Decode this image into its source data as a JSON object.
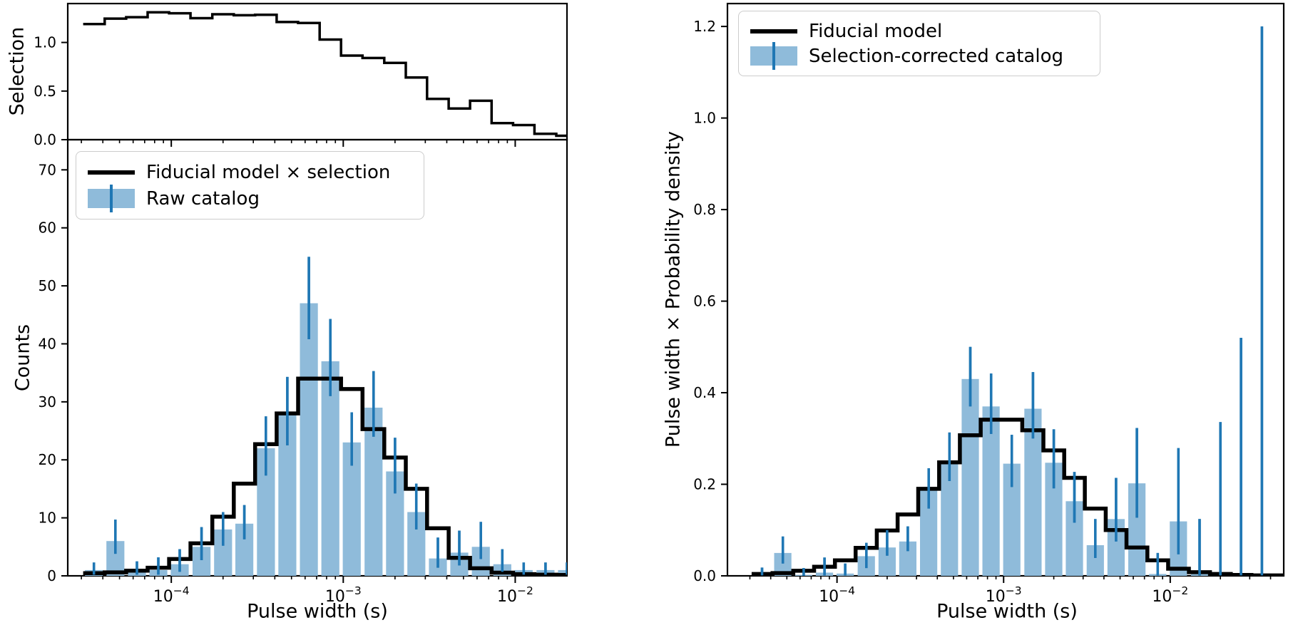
{
  "labels": {
    "selection_ylabel": "Selection",
    "counts_ylabel": "Counts",
    "density_ylabel": "Pulse width × Probability density",
    "xlabel_left": "Pulse width (s)",
    "xlabel_right": "Pulse width (s)"
  },
  "left_legend": {
    "items": [
      {
        "label": "Fiducial model × selection",
        "swatch": "black-line-icon"
      },
      {
        "label": "Raw catalog",
        "swatch": "blue-errorbar-patch-icon"
      }
    ]
  },
  "right_legend": {
    "items": [
      {
        "label": "Fiducial model",
        "swatch": "black-line-icon"
      },
      {
        "label": "Selection-corrected catalog",
        "swatch": "blue-errorbar-patch-icon"
      }
    ]
  },
  "colors": {
    "bar_fill": "#8fbbda",
    "error_bar": "#1f77b4",
    "model_line": "#000000",
    "axis": "#000000",
    "legend_border": "#cccccc"
  },
  "chart_data": [
    {
      "type": "line",
      "panel": "top-left-selection",
      "ylabel": "Selection",
      "xscale": "log",
      "line_style": "step",
      "xlim": [
        2.5e-05,
        0.02
      ],
      "ylim": [
        0,
        1.4
      ],
      "yticks": [
        {
          "v": 0.0,
          "label": "0.0"
        },
        {
          "v": 0.5,
          "label": "0.5"
        },
        {
          "v": 1.0,
          "label": "1.0"
        }
      ],
      "x_centers": [
        3.55e-05,
        4.73e-05,
        6.31e-05,
        8.41e-05,
        0.000112,
        0.00015,
        0.0002,
        0.000266,
        0.000355,
        0.000473,
        0.000631,
        0.000841,
        0.00112,
        0.0015,
        0.002,
        0.00266,
        0.00355,
        0.00473,
        0.00631,
        0.00841,
        0.0112,
        0.015,
        0.02,
        0.0266,
        0.0355
      ],
      "values": [
        1.19,
        1.245,
        1.26,
        1.31,
        1.3,
        1.25,
        1.29,
        1.28,
        1.285,
        1.21,
        1.2,
        1.03,
        0.865,
        0.84,
        0.79,
        0.64,
        0.42,
        0.32,
        0.4,
        0.17,
        0.15,
        0.06,
        0.04,
        0.03,
        0.02
      ]
    },
    {
      "type": "bar",
      "panel": "bottom-left-counts",
      "ylabel": "Counts",
      "xlabel": "Pulse width (s)",
      "xscale": "log",
      "xlim": [
        2.5e-05,
        0.02
      ],
      "ylim": [
        0,
        75.2
      ],
      "yticks": [
        {
          "v": 0,
          "label": "0"
        },
        {
          "v": 10,
          "label": "10"
        },
        {
          "v": 20,
          "label": "20"
        },
        {
          "v": 30,
          "label": "30"
        },
        {
          "v": 40,
          "label": "40"
        },
        {
          "v": 50,
          "label": "50"
        },
        {
          "v": 60,
          "label": "60"
        },
        {
          "v": 70,
          "label": "70"
        }
      ],
      "xticks": [
        {
          "value": 0.0001,
          "base": "10",
          "exp": "−4"
        },
        {
          "value": 0.001,
          "base": "10",
          "exp": "−3"
        },
        {
          "value": 0.01,
          "base": "10",
          "exp": "−2"
        }
      ],
      "x_centers": [
        3.55e-05,
        4.73e-05,
        6.31e-05,
        8.41e-05,
        0.000112,
        0.00015,
        0.0002,
        0.000266,
        0.000355,
        0.000473,
        0.000631,
        0.000841,
        0.00112,
        0.0015,
        0.002,
        0.00266,
        0.00355,
        0.00473,
        0.00631,
        0.00841,
        0.0112,
        0.015,
        0.02,
        0.0266,
        0.0355
      ],
      "series": [
        {
          "name": "Fiducial model × selection",
          "style": "step-line",
          "values": [
            0.45,
            0.6,
            0.9,
            1.4,
            2.9,
            5.6,
            10.2,
            15.9,
            22.7,
            28.0,
            34.0,
            34.0,
            32.2,
            25.3,
            20.4,
            15.0,
            8.2,
            3.1,
            1.3,
            0.55,
            0.3,
            0.2,
            0.15,
            0.1,
            0.08
          ]
        },
        {
          "name": "Raw catalog",
          "style": "bars-with-errors",
          "values": [
            1,
            6,
            1,
            1,
            2,
            5,
            8,
            9,
            22,
            28,
            47,
            37,
            23,
            29,
            18,
            11,
            3,
            4,
            5,
            2,
            1,
            1,
            1,
            0,
            0
          ],
          "err_lo": [
            0.2,
            3.8,
            0.2,
            0.2,
            0.7,
            2.7,
            5.2,
            6.3,
            17.3,
            22.5,
            40.8,
            31.0,
            19.0,
            24.0,
            14.2,
            8.0,
            1.4,
            1.8,
            2.9,
            0.7,
            0.2,
            0.2,
            0.2,
            0,
            0
          ],
          "err_hi": [
            2.3,
            9.7,
            2.5,
            3.2,
            4.6,
            8.4,
            11.0,
            12.2,
            27.5,
            34.3,
            55.0,
            44.3,
            28.2,
            35.3,
            23.8,
            15.9,
            6.6,
            7.8,
            9.3,
            4.6,
            2.3,
            2.3,
            2.3,
            0,
            0
          ]
        }
      ]
    },
    {
      "type": "bar",
      "panel": "right-density",
      "ylabel": "Pulse width × Probability density",
      "xlabel": "Pulse width (s)",
      "xscale": "log",
      "xlim": [
        2.2e-05,
        0.048
      ],
      "ylim": [
        0,
        1.25
      ],
      "yticks": [
        {
          "v": 0.0,
          "label": "0.0"
        },
        {
          "v": 0.2,
          "label": "0.2"
        },
        {
          "v": 0.4,
          "label": "0.4"
        },
        {
          "v": 0.6,
          "label": "0.6"
        },
        {
          "v": 0.8,
          "label": "0.8"
        },
        {
          "v": 1.0,
          "label": "1.0"
        },
        {
          "v": 1.2,
          "label": "1.2"
        }
      ],
      "xticks": [
        {
          "value": 0.0001,
          "base": "10",
          "exp": "−4"
        },
        {
          "value": 0.001,
          "base": "10",
          "exp": "−3"
        },
        {
          "value": 0.01,
          "base": "10",
          "exp": "−2"
        }
      ],
      "x_centers": [
        3.55e-05,
        4.73e-05,
        6.31e-05,
        8.41e-05,
        0.000112,
        0.00015,
        0.0002,
        0.000266,
        0.000355,
        0.000473,
        0.000631,
        0.000841,
        0.00112,
        0.0015,
        0.002,
        0.00266,
        0.00355,
        0.00473,
        0.00631,
        0.00841,
        0.0112,
        0.015,
        0.02,
        0.0266,
        0.0355
      ],
      "series": [
        {
          "name": "Fiducial model",
          "style": "step-line",
          "values": [
            0.004,
            0.006,
            0.011,
            0.02,
            0.034,
            0.061,
            0.099,
            0.134,
            0.19,
            0.248,
            0.307,
            0.341,
            0.341,
            0.318,
            0.274,
            0.214,
            0.147,
            0.1,
            0.062,
            0.034,
            0.0155,
            0.008,
            0.004,
            0.002,
            0.001
          ]
        },
        {
          "name": "Selection-corrected catalog",
          "style": "bars-with-errors",
          "values": [
            0.004,
            0.05,
            0.002,
            0.007,
            0.005,
            0.043,
            0.062,
            0.075,
            0.19,
            0.25,
            0.43,
            0.37,
            0.245,
            0.365,
            0.247,
            0.163,
            0.067,
            0.124,
            0.202,
            0.004,
            0.119,
            0.004,
            0.004,
            0.005,
            0.005
          ],
          "err_lo": [
            0.001,
            0.027,
            0.0,
            0.001,
            0.001,
            0.017,
            0.044,
            0.054,
            0.147,
            0.207,
            0.37,
            0.31,
            0.194,
            0.3,
            0.191,
            0.116,
            0.039,
            0.075,
            0.127,
            0.001,
            0.047,
            0.001,
            0.001,
            0.001,
            0.001
          ],
          "err_hi": [
            0.018,
            0.086,
            0.017,
            0.04,
            0.027,
            0.072,
            0.1,
            0.108,
            0.235,
            0.313,
            0.5,
            0.442,
            0.308,
            0.445,
            0.32,
            0.227,
            0.124,
            0.214,
            0.323,
            0.05,
            0.279,
            0.124,
            0.336,
            0.52,
            1.2
          ]
        }
      ]
    }
  ]
}
